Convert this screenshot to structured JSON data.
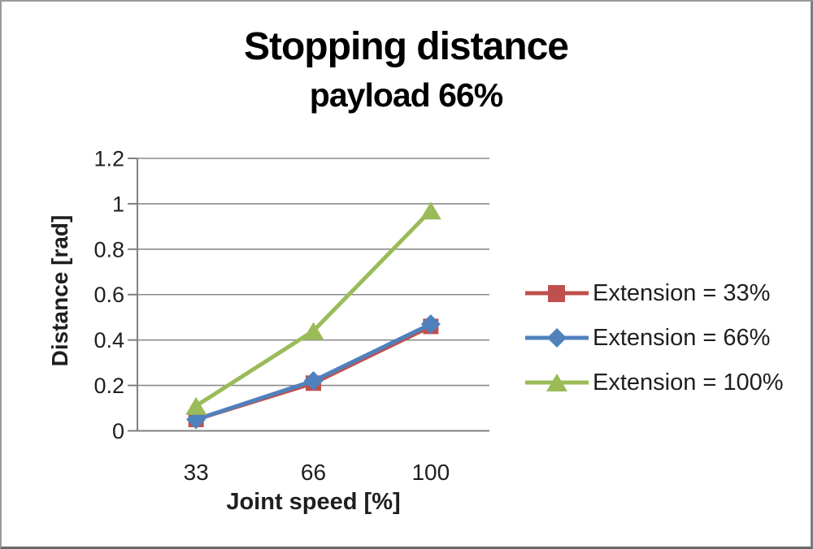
{
  "page": {
    "background": "#ffffff",
    "border_color": "#8a8a8a"
  },
  "chart_data": {
    "type": "line",
    "title": "Stopping distance",
    "subtitle": "payload 66%",
    "xlabel": "Joint speed [%]",
    "ylabel": "Distance [rad]",
    "categories": [
      "33",
      "66",
      "100"
    ],
    "series": [
      {
        "name": "Extension = 33%",
        "marker": "square",
        "color": "#C0504D",
        "values": [
          0.05,
          0.21,
          0.46
        ]
      },
      {
        "name": "Extension = 66%",
        "marker": "diamond",
        "color": "#4F81BD",
        "values": [
          0.05,
          0.22,
          0.47
        ]
      },
      {
        "name": "Extension = 100%",
        "marker": "triangle",
        "color": "#9BBB59",
        "values": [
          0.11,
          0.44,
          0.97
        ]
      }
    ],
    "ylim": [
      0,
      1.2
    ],
    "ytick_step": 0.2,
    "yticks": [
      "0",
      "0.2",
      "0.4",
      "0.6",
      "0.8",
      "1",
      "1.2"
    ],
    "grid": "horizontal",
    "legend_position": "right",
    "gridline_color": "#8c8c8c",
    "axis_color": "#808080",
    "text_color": "#1f1f1f"
  }
}
